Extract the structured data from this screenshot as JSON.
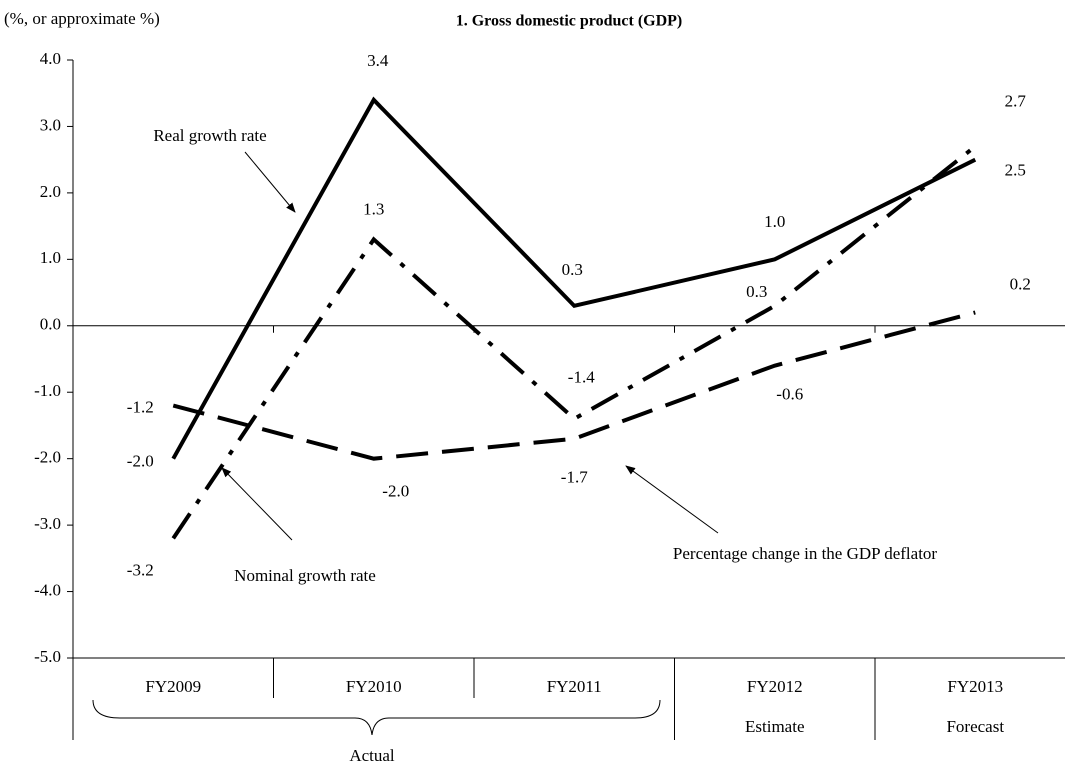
{
  "chart_data": {
    "type": "line",
    "title": "1. Gross domestic product (GDP)",
    "y_axis_label": "(%, or approximate %)",
    "categories": [
      "FY2009",
      "FY2010",
      "FY2011",
      "FY2012",
      "FY2013"
    ],
    "x_sublabels": [
      null,
      null,
      null,
      "Estimate",
      "Forecast"
    ],
    "group_label": "Actual",
    "series": [
      {
        "name": "Real growth rate",
        "color": "#000000",
        "style": "solid",
        "values": [
          -2.0,
          3.4,
          0.3,
          1.0,
          2.5
        ],
        "value_labels": [
          "-2.0",
          "3.4",
          "0.3",
          "1.0",
          "2.5"
        ]
      },
      {
        "name": "Nominal growth rate",
        "color": "#000000",
        "style": "dash-dot",
        "values": [
          -3.2,
          1.3,
          -1.4,
          0.3,
          2.7
        ],
        "value_labels": [
          "-3.2",
          "1.3",
          "-1.4",
          "0.3",
          "2.7"
        ]
      },
      {
        "name": "Percentage change in the GDP deflator",
        "color": "#000000",
        "style": "dashed",
        "values": [
          -1.2,
          -2.0,
          -1.7,
          -0.6,
          0.2
        ],
        "value_labels": [
          "-1.2",
          "-2.0",
          "-1.7",
          "-0.6",
          "0.2"
        ]
      }
    ],
    "ylim": [
      -5,
      4
    ],
    "yticks": [
      {
        "value": 4,
        "label": "4.0"
      },
      {
        "value": 3,
        "label": "3.0"
      },
      {
        "value": 2,
        "label": "2.0"
      },
      {
        "value": 1,
        "label": "1.0"
      },
      {
        "value": 0,
        "label": "0.0"
      },
      {
        "value": -1,
        "label": "-1.0"
      },
      {
        "value": -2,
        "label": "-2.0"
      },
      {
        "value": -3,
        "label": "-3.0"
      },
      {
        "value": -4,
        "label": "-4.0"
      },
      {
        "value": -5,
        "label": "-5.0"
      }
    ],
    "grid": false
  }
}
